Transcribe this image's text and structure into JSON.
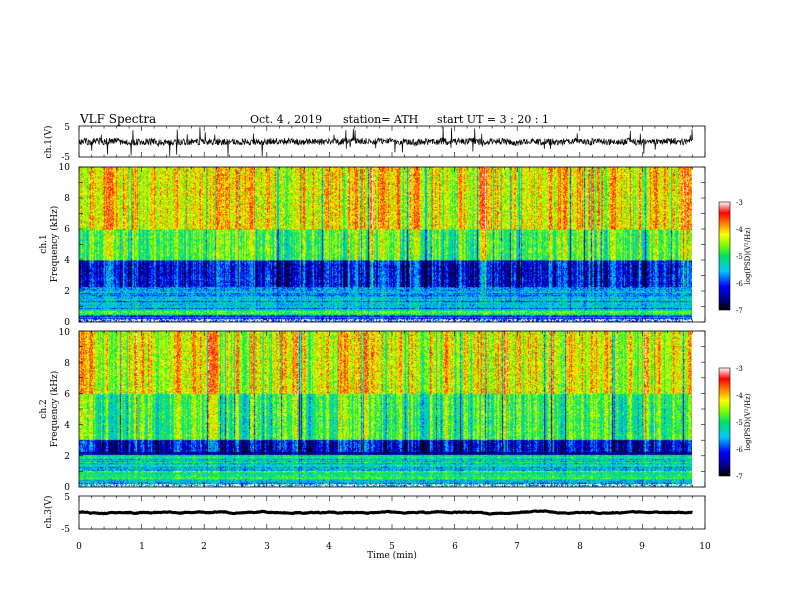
{
  "header": {
    "title": "VLF  Spectra",
    "date": "Oct. 4  , 2019",
    "station": "station= ATH",
    "start": "start  UT  =    3  : 20 : 1"
  },
  "chart_data": [
    {
      "type": "line",
      "name": "ch1-waveform",
      "ylabel": "ch.1(V)",
      "ylim": [
        -5,
        5
      ],
      "yticklabels": [
        "5",
        "-5"
      ],
      "xlim": [
        0,
        10
      ],
      "data_range": [
        0,
        9.8
      ],
      "baseline": 0,
      "amplitude": 1.5
    },
    {
      "type": "heatmap",
      "name": "ch1-spectrogram",
      "ylabel": "ch.1\nFrequency  (kHz)",
      "ylabel_lines": [
        "ch.1",
        "Frequency  (kHz)"
      ],
      "ylim": [
        0,
        10
      ],
      "yticklabels": [
        "0",
        "2",
        "4",
        "6",
        "8",
        "10"
      ],
      "xlim": [
        0,
        10
      ],
      "data_range": [
        0,
        9.8
      ],
      "color_range": [
        -7,
        -3
      ],
      "colorbar_label": "log(PSD)(V²/Hz)",
      "colorbar_ticklabels": [
        "-3",
        "-4",
        "-5",
        "-6",
        "-7"
      ],
      "bands": [
        {
          "f": [
            0,
            0.4
          ],
          "level": -6.0
        },
        {
          "f": [
            0.4,
            0.8
          ],
          "level": -5.0
        },
        {
          "f": [
            0.8,
            2.2
          ],
          "level": -5.6
        },
        {
          "f": [
            2.2,
            4.0
          ],
          "level": -6.2
        },
        {
          "f": [
            4.0,
            6.0
          ],
          "level": -4.8
        },
        {
          "f": [
            6.0,
            10.0
          ],
          "level": -4.2
        }
      ]
    },
    {
      "type": "heatmap",
      "name": "ch2-spectrogram",
      "ylabel": "ch.2\nFrequency  (kHz)",
      "ylabel_lines": [
        "ch.2",
        "Frequency  (kHz)"
      ],
      "ylim": [
        0,
        10
      ],
      "yticklabels": [
        "0",
        "2",
        "4",
        "6",
        "8",
        "10"
      ],
      "xlim": [
        0,
        10
      ],
      "data_range": [
        0,
        9.8
      ],
      "color_range": [
        -7,
        -3
      ],
      "colorbar_label": "log(PSD)(V²/Hz)",
      "colorbar_ticklabels": [
        "-3",
        "-4",
        "-5",
        "-6",
        "-7"
      ],
      "bands": [
        {
          "f": [
            0,
            0.4
          ],
          "level": -5.8
        },
        {
          "f": [
            0.4,
            1.0
          ],
          "level": -5.0
        },
        {
          "f": [
            1.0,
            2.0
          ],
          "level": -5.3
        },
        {
          "f": [
            2.0,
            3.0
          ],
          "level": -6.3
        },
        {
          "f": [
            3.0,
            6.0
          ],
          "level": -4.9
        },
        {
          "f": [
            6.0,
            10.0
          ],
          "level": -4.3
        }
      ]
    },
    {
      "type": "line",
      "name": "ch3-waveform",
      "ylabel": "ch.3(V)",
      "ylim": [
        -5,
        5
      ],
      "yticklabels": [
        "5",
        "-5"
      ],
      "xlim": [
        0,
        10
      ],
      "data_range": [
        0,
        9.8
      ],
      "baseline": 0,
      "amplitude": 0.15,
      "xlabel": "Time  (min)",
      "xticklabels": [
        "0",
        "1",
        "2",
        "3",
        "4",
        "5",
        "6",
        "7",
        "8",
        "9",
        "10"
      ]
    }
  ]
}
